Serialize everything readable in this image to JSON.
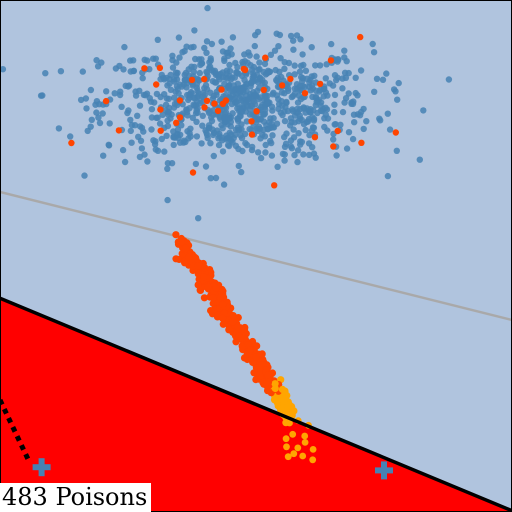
{
  "chart_data": {
    "type": "scatter",
    "title": "",
    "xlabel": "",
    "ylabel": "",
    "xlim": [
      -4,
      4
    ],
    "ylim": [
      -4,
      4
    ],
    "grid": false,
    "annotation": "483 Poisons",
    "colors": {
      "background_region": "#b0c4de",
      "poison_region": "#ff0000",
      "clean": "#4682b4",
      "poison_orange_red": "#ff4500",
      "poison_orange": "#ffa500",
      "cross": "#4682b4",
      "gray_boundary": "#a9a9a9",
      "black_boundary": "#000000"
    },
    "boundaries": [
      {
        "name": "initial",
        "style": "solid",
        "color": "#a9a9a9",
        "x": [
          -4,
          4
        ],
        "y": [
          1.0,
          -1.0
        ]
      },
      {
        "name": "poisoned",
        "style": "solid",
        "color": "#000000",
        "x": [
          -4,
          4
        ],
        "y": [
          -0.66,
          -3.98
        ]
      },
      {
        "name": "target",
        "style": "dotted",
        "color": "#000000",
        "x": [
          -4.0,
          -3.55
        ],
        "y": [
          -2.25,
          -3.2
        ]
      }
    ],
    "clean_cluster": {
      "center": [
        -0.3,
        2.4
      ],
      "spread": [
        1.05,
        0.45
      ],
      "count": 900
    },
    "poison_stream": {
      "start": [
        -1.2,
        0.25
      ],
      "end": [
        0.55,
        -2.5
      ],
      "count": 483
    },
    "crosses": [
      {
        "x": -3.35,
        "y": -3.3
      },
      {
        "x": 2.0,
        "y": -3.35
      }
    ]
  }
}
